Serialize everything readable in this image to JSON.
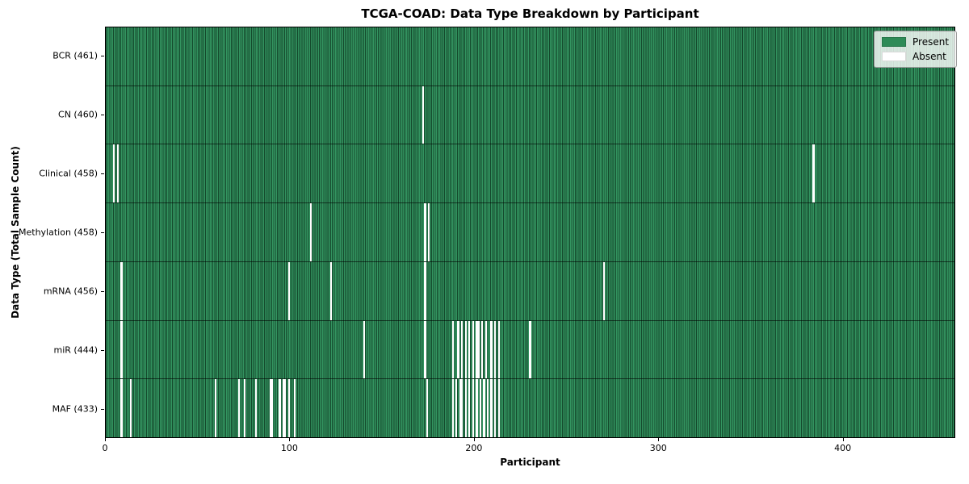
{
  "chart_data": {
    "type": "heatmap",
    "title": "TCGA-COAD: Data Type Breakdown by Participant",
    "xlabel": "Participant",
    "ylabel": "Data Type (Total Sample Count)",
    "x_ticks": [
      0,
      100,
      200,
      300,
      400
    ],
    "xlim": [
      0,
      461
    ],
    "n_participants": 461,
    "grid": false,
    "legend_position": "upper right",
    "legend": [
      {
        "label": "Present",
        "color": "#2e8b57"
      },
      {
        "label": "Absent",
        "color": "#ffffff"
      }
    ],
    "colors": {
      "present": "#2e8b57",
      "absent": "#ffffff",
      "cell_edge": "#14492c"
    },
    "rows": [
      {
        "data_type": "BCR",
        "label": "BCR (461)",
        "present_count": 461,
        "absent_participants": []
      },
      {
        "data_type": "CN",
        "label": "CN (460)",
        "present_count": 460,
        "absent_participants": [
          172
        ]
      },
      {
        "data_type": "Clinical",
        "label": "Clinical (458)",
        "present_count": 458,
        "absent_participants": [
          4,
          6,
          384
        ]
      },
      {
        "data_type": "Methylation",
        "label": "Methylation (458)",
        "present_count": 458,
        "absent_participants": [
          111,
          173,
          175
        ]
      },
      {
        "data_type": "mRNA",
        "label": "mRNA (456)",
        "present_count": 456,
        "absent_participants": [
          8,
          99,
          122,
          173,
          270
        ]
      },
      {
        "data_type": "miR",
        "label": "miR (444)",
        "present_count": 444,
        "absent_participants": [
          8,
          140,
          173,
          188,
          191,
          193,
          195,
          197,
          199,
          201,
          202,
          204,
          206,
          209,
          211,
          213,
          230
        ]
      },
      {
        "data_type": "MAF",
        "label": "MAF (433)",
        "present_count": 433,
        "absent_participants": [
          8,
          13,
          59,
          72,
          75,
          81,
          89,
          90,
          94,
          96,
          97,
          99,
          102,
          174,
          188,
          190,
          192,
          193,
          195,
          197,
          199,
          201,
          203,
          205,
          207,
          209,
          211,
          213
        ]
      }
    ]
  }
}
